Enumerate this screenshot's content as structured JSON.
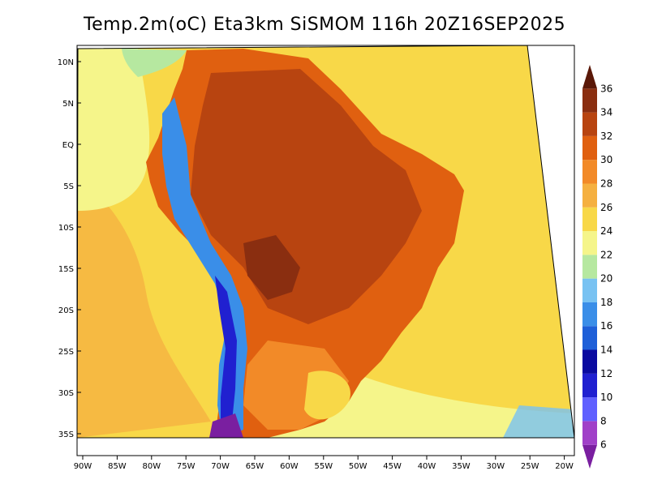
{
  "title": "Temp.2m(oC) Eta3km SiSMOM 116h 20Z16SEP2025",
  "lat_labels": [
    "10N",
    "5N",
    "EQ",
    "5S",
    "10S",
    "15S",
    "20S",
    "25S",
    "30S",
    "35S"
  ],
  "lon_labels": [
    "90W",
    "85W",
    "80W",
    "75W",
    "70W",
    "65W",
    "60W",
    "55W",
    "50W",
    "45W",
    "40W",
    "35W",
    "30W",
    "25W",
    "20W"
  ],
  "colorbar": {
    "ticks": [
      "6",
      "8",
      "10",
      "12",
      "14",
      "16",
      "18",
      "20",
      "22",
      "24",
      "26",
      "28",
      "30",
      "32",
      "34",
      "36"
    ],
    "colors": [
      "#7a1fa0",
      "#a040c8",
      "#6060ff",
      "#2020d0",
      "#0a0aa0",
      "#1e5fd8",
      "#3a8ee8",
      "#78c2f2",
      "#b6e8a0",
      "#f5f58a",
      "#f8d848",
      "#f5b040",
      "#f28a28",
      "#e06010",
      "#b84410",
      "#8a2e10",
      "#5a1808"
    ]
  },
  "map_colors": {
    "ocean_far": "#f8d848",
    "ocean_near": "#f5f58a",
    "ocean_pacific": "#f5b040",
    "land_hot": "#b84410",
    "land_warm": "#e06010",
    "land_mid": "#f28a28",
    "andes_cold": "#3a8ee8",
    "andes_coldest": "#2020d0"
  }
}
